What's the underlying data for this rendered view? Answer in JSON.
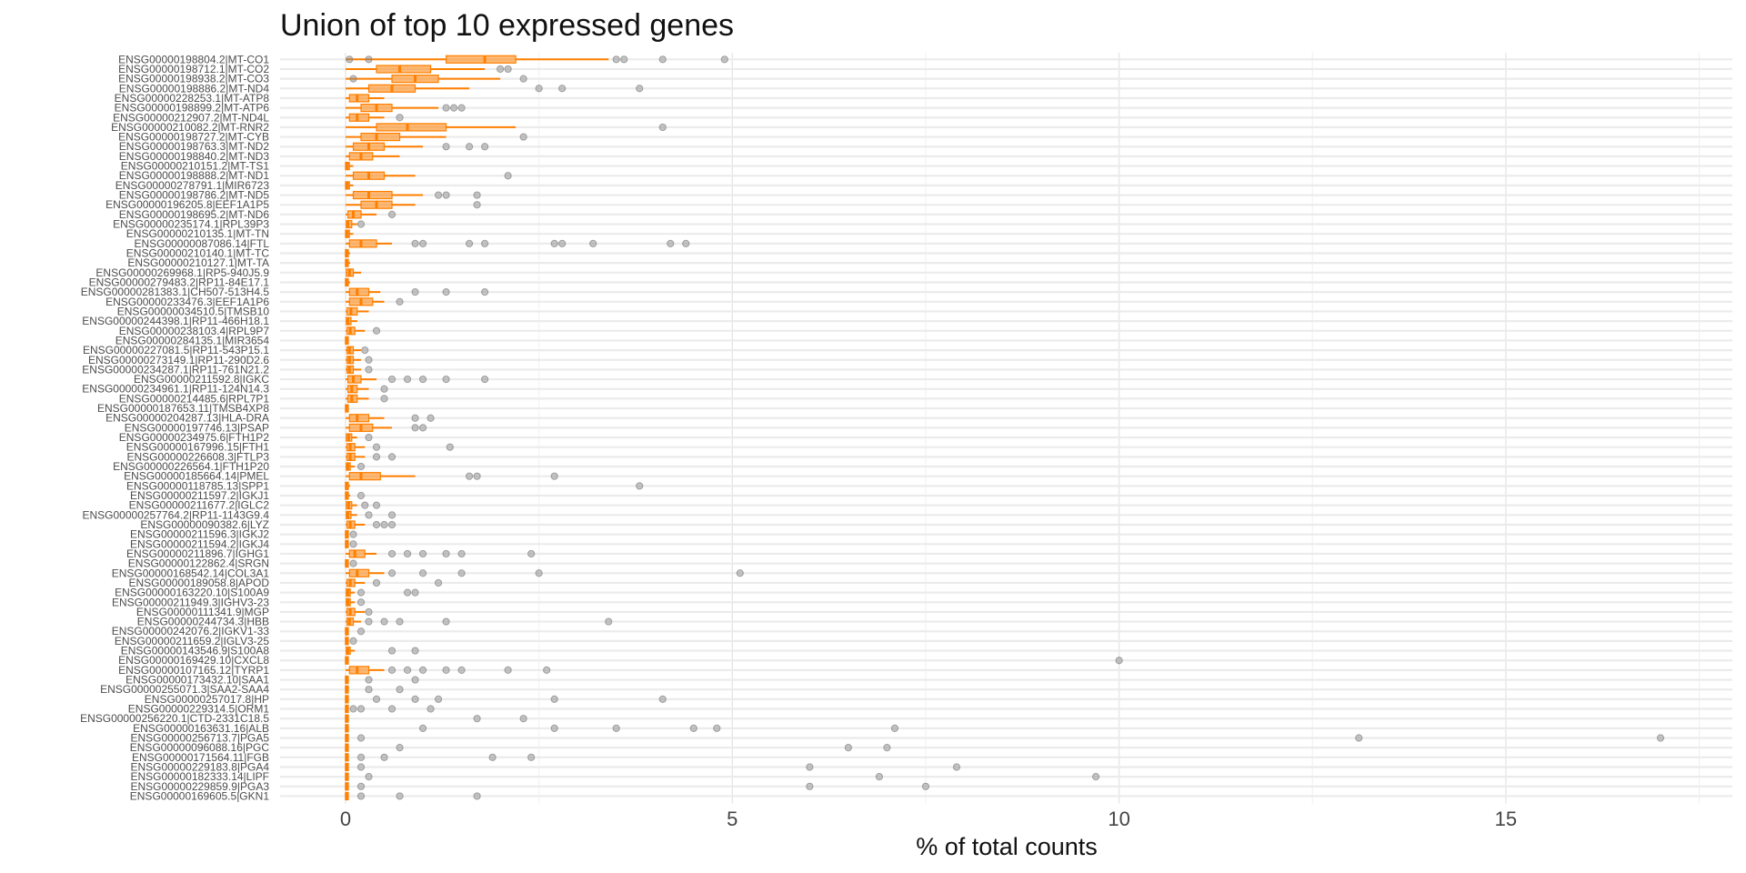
{
  "chart_data": {
    "type": "box",
    "title": "Union of top 10 expressed genes",
    "xlabel": "% of total counts",
    "ylabel": "",
    "xlim": [
      -0.85,
      17.5
    ],
    "xticks": [
      0,
      5,
      10,
      15
    ],
    "grid": true,
    "box_color": "#FF7F00",
    "outlier_color": "#808080",
    "categories": [
      "ENSG00000198804.2|MT-CO1",
      "ENSG00000198712.1|MT-CO2",
      "ENSG00000198938.2|MT-CO3",
      "ENSG00000198886.2|MT-ND4",
      "ENSG00000228253.1|MT-ATP8",
      "ENSG00000198899.2|MT-ATP6",
      "ENSG00000212907.2|MT-ND4L",
      "ENSG00000210082.2|MT-RNR2",
      "ENSG00000198727.2|MT-CYB",
      "ENSG00000198763.3|MT-ND2",
      "ENSG00000198840.2|MT-ND3",
      "ENSG00000210151.2|MT-TS1",
      "ENSG00000198888.2|MT-ND1",
      "ENSG00000278791.1|MIR6723",
      "ENSG00000198786.2|MT-ND5",
      "ENSG00000196205.8|EEF1A1P5",
      "ENSG00000198695.2|MT-ND6",
      "ENSG00000235174.1|RPL39P3",
      "ENSG00000210135.1|MT-TN",
      "ENSG00000087086.14|FTL",
      "ENSG00000210140.1|MT-TC",
      "ENSG00000210127.1|MT-TA",
      "ENSG00000269968.1|RP5-940J5.9",
      "ENSG00000279483.2|RP11-84E17.1",
      "ENSG00000281383.1|CH507-513H4.5",
      "ENSG00000233476.3|EEF1A1P6",
      "ENSG00000034510.5|TMSB10",
      "ENSG00000244398.1|RP11-466H18.1",
      "ENSG00000238103.4|RPL9P7",
      "ENSG00000284135.1|MIR3654",
      "ENSG00000227081.5|RP11-543P15.1",
      "ENSG00000273149.1|RP11-290D2.6",
      "ENSG00000234287.1|RP11-761N21.2",
      "ENSG00000211592.8|IGKC",
      "ENSG00000234961.1|RP11-124N14.3",
      "ENSG00000214485.6|RPL7P1",
      "ENSG00000187653.11|TMSB4XP8",
      "ENSG00000204287.13|HLA-DRA",
      "ENSG00000197746.13|PSAP",
      "ENSG00000234975.6|FTH1P2",
      "ENSG00000167996.15|FTH1",
      "ENSG00000226608.3|FTLP3",
      "ENSG00000226564.1|FTH1P20",
      "ENSG00000185664.14|PMEL",
      "ENSG00000118785.13|SPP1",
      "ENSG00000211597.2|IGKJ1",
      "ENSG00000211677.2|IGLC2",
      "ENSG00000257764.2|RP11-1143G9.4",
      "ENSG00000090382.6|LYZ",
      "ENSG00000211596.3|IGKJ2",
      "ENSG00000211594.2|IGKJ4",
      "ENSG00000211896.7|IGHG1",
      "ENSG00000122862.4|SRGN",
      "ENSG00000168542.14|COL3A1",
      "ENSG00000189058.8|APOD",
      "ENSG00000163220.10|S100A9",
      "ENSG00000211949.3|IGHV3-23",
      "ENSG00000111341.9|MGP",
      "ENSG00000244734.3|HBB",
      "ENSG00000242076.2|IGKV1-33",
      "ENSG00000211659.2|IGLV3-25",
      "ENSG00000143546.9|S100A8",
      "ENSG00000169429.10|CXCL8",
      "ENSG00000107165.12|TYRP1",
      "ENSG00000173432.10|SAA1",
      "ENSG00000255071.3|SAA2-SAA4",
      "ENSG00000257017.8|HP",
      "ENSG00000229314.5|ORM1",
      "ENSG00000256220.1|CTD-2331C18.5",
      "ENSG00000163631.16|ALB",
      "ENSG00000256713.7|PGA5",
      "ENSG00000096088.16|PGC",
      "ENSG00000171564.11|FGB",
      "ENSG00000229183.8|PGA4",
      "ENSG00000182333.14|LIPF",
      "ENSG00000229859.9|PGA3",
      "ENSG00000169605.5|GKN1"
    ],
    "boxes": [
      {
        "min": 0.0,
        "q1": 1.3,
        "median": 1.8,
        "q3": 2.2,
        "max": 3.4,
        "outliers": [
          0.05,
          0.3,
          3.5,
          3.6,
          4.1,
          4.9
        ]
      },
      {
        "min": 0.0,
        "q1": 0.4,
        "median": 0.7,
        "q3": 1.1,
        "max": 1.8,
        "outliers": [
          2.0,
          2.1
        ]
      },
      {
        "min": 0.0,
        "q1": 0.6,
        "median": 0.9,
        "q3": 1.2,
        "max": 2.0,
        "outliers": [
          0.1,
          2.3
        ]
      },
      {
        "min": 0.0,
        "q1": 0.3,
        "median": 0.6,
        "q3": 0.9,
        "max": 1.6,
        "outliers": [
          2.5,
          2.8,
          3.8
        ]
      },
      {
        "min": 0.0,
        "q1": 0.05,
        "median": 0.15,
        "q3": 0.3,
        "max": 0.5,
        "outliers": []
      },
      {
        "min": 0.0,
        "q1": 0.2,
        "median": 0.4,
        "q3": 0.6,
        "max": 1.2,
        "outliers": [
          1.3,
          1.4,
          1.5
        ]
      },
      {
        "min": 0.0,
        "q1": 0.05,
        "median": 0.15,
        "q3": 0.3,
        "max": 0.5,
        "outliers": [
          0.7
        ]
      },
      {
        "min": 0.0,
        "q1": 0.4,
        "median": 0.8,
        "q3": 1.3,
        "max": 2.2,
        "outliers": [
          4.1
        ]
      },
      {
        "min": 0.0,
        "q1": 0.2,
        "median": 0.4,
        "q3": 0.7,
        "max": 1.3,
        "outliers": [
          2.3
        ]
      },
      {
        "min": 0.0,
        "q1": 0.1,
        "median": 0.3,
        "q3": 0.5,
        "max": 1.0,
        "outliers": [
          1.3,
          1.6,
          1.8
        ]
      },
      {
        "min": 0.0,
        "q1": 0.05,
        "median": 0.2,
        "q3": 0.35,
        "max": 0.7,
        "outliers": []
      },
      {
        "min": 0.0,
        "q1": 0.0,
        "median": 0.02,
        "q3": 0.05,
        "max": 0.1,
        "outliers": []
      },
      {
        "min": 0.0,
        "q1": 0.1,
        "median": 0.3,
        "q3": 0.5,
        "max": 0.9,
        "outliers": [
          2.1
        ]
      },
      {
        "min": 0.0,
        "q1": 0.0,
        "median": 0.02,
        "q3": 0.05,
        "max": 0.1,
        "outliers": []
      },
      {
        "min": 0.0,
        "q1": 0.1,
        "median": 0.3,
        "q3": 0.6,
        "max": 1.0,
        "outliers": [
          1.2,
          1.3,
          1.7
        ]
      },
      {
        "min": 0.0,
        "q1": 0.2,
        "median": 0.4,
        "q3": 0.6,
        "max": 0.9,
        "outliers": [
          1.7
        ]
      },
      {
        "min": 0.0,
        "q1": 0.03,
        "median": 0.1,
        "q3": 0.2,
        "max": 0.4,
        "outliers": [
          0.6
        ]
      },
      {
        "min": 0.0,
        "q1": 0.01,
        "median": 0.03,
        "q3": 0.08,
        "max": 0.15,
        "outliers": [
          0.2
        ]
      },
      {
        "min": 0.0,
        "q1": 0.0,
        "median": 0.02,
        "q3": 0.05,
        "max": 0.1,
        "outliers": []
      },
      {
        "min": 0.0,
        "q1": 0.05,
        "median": 0.2,
        "q3": 0.4,
        "max": 0.6,
        "outliers": [
          0.9,
          1.0,
          1.6,
          1.8,
          2.7,
          2.8,
          3.2,
          4.2,
          4.4
        ]
      },
      {
        "min": 0.0,
        "q1": 0.0,
        "median": 0.01,
        "q3": 0.03,
        "max": 0.06,
        "outliers": []
      },
      {
        "min": 0.0,
        "q1": 0.0,
        "median": 0.01,
        "q3": 0.03,
        "max": 0.06,
        "outliers": []
      },
      {
        "min": 0.0,
        "q1": 0.01,
        "median": 0.05,
        "q3": 0.1,
        "max": 0.2,
        "outliers": []
      },
      {
        "min": 0.0,
        "q1": 0.0,
        "median": 0.01,
        "q3": 0.03,
        "max": 0.06,
        "outliers": []
      },
      {
        "min": 0.0,
        "q1": 0.05,
        "median": 0.15,
        "q3": 0.3,
        "max": 0.45,
        "outliers": [
          0.9,
          1.3,
          1.8
        ]
      },
      {
        "min": 0.0,
        "q1": 0.05,
        "median": 0.2,
        "q3": 0.35,
        "max": 0.5,
        "outliers": [
          0.7
        ]
      },
      {
        "min": 0.0,
        "q1": 0.02,
        "median": 0.07,
        "q3": 0.15,
        "max": 0.3,
        "outliers": []
      },
      {
        "min": 0.0,
        "q1": 0.01,
        "median": 0.03,
        "q3": 0.07,
        "max": 0.15,
        "outliers": []
      },
      {
        "min": 0.0,
        "q1": 0.02,
        "median": 0.06,
        "q3": 0.12,
        "max": 0.25,
        "outliers": [
          0.4
        ]
      },
      {
        "min": 0.0,
        "q1": 0.0,
        "median": 0.01,
        "q3": 0.02,
        "max": 0.04,
        "outliers": []
      },
      {
        "min": 0.0,
        "q1": 0.02,
        "median": 0.05,
        "q3": 0.1,
        "max": 0.2,
        "outliers": [
          0.25
        ]
      },
      {
        "min": 0.0,
        "q1": 0.02,
        "median": 0.05,
        "q3": 0.1,
        "max": 0.2,
        "outliers": [
          0.3
        ]
      },
      {
        "min": 0.0,
        "q1": 0.02,
        "median": 0.05,
        "q3": 0.1,
        "max": 0.2,
        "outliers": [
          0.3
        ]
      },
      {
        "min": 0.0,
        "q1": 0.03,
        "median": 0.1,
        "q3": 0.2,
        "max": 0.4,
        "outliers": [
          0.6,
          0.8,
          1.0,
          1.3,
          1.8
        ]
      },
      {
        "min": 0.0,
        "q1": 0.03,
        "median": 0.08,
        "q3": 0.15,
        "max": 0.3,
        "outliers": [
          0.5
        ]
      },
      {
        "min": 0.0,
        "q1": 0.03,
        "median": 0.08,
        "q3": 0.15,
        "max": 0.3,
        "outliers": [
          0.5
        ]
      },
      {
        "min": 0.0,
        "q1": 0.0,
        "median": 0.01,
        "q3": 0.02,
        "max": 0.04,
        "outliers": []
      },
      {
        "min": 0.0,
        "q1": 0.05,
        "median": 0.15,
        "q3": 0.3,
        "max": 0.5,
        "outliers": [
          0.9,
          1.1
        ]
      },
      {
        "min": 0.0,
        "q1": 0.05,
        "median": 0.2,
        "q3": 0.35,
        "max": 0.6,
        "outliers": [
          0.9,
          1.0
        ]
      },
      {
        "min": 0.0,
        "q1": 0.01,
        "median": 0.04,
        "q3": 0.08,
        "max": 0.15,
        "outliers": [
          0.3
        ]
      },
      {
        "min": 0.0,
        "q1": 0.02,
        "median": 0.06,
        "q3": 0.12,
        "max": 0.25,
        "outliers": [
          0.4,
          1.35
        ]
      },
      {
        "min": 0.0,
        "q1": 0.02,
        "median": 0.06,
        "q3": 0.12,
        "max": 0.25,
        "outliers": [
          0.4,
          0.6
        ]
      },
      {
        "min": 0.0,
        "q1": 0.01,
        "median": 0.03,
        "q3": 0.06,
        "max": 0.12,
        "outliers": [
          0.2
        ]
      },
      {
        "min": 0.0,
        "q1": 0.05,
        "median": 0.2,
        "q3": 0.45,
        "max": 0.9,
        "outliers": [
          1.6,
          1.7,
          2.7
        ]
      },
      {
        "min": 0.0,
        "q1": 0.0,
        "median": 0.01,
        "q3": 0.03,
        "max": 0.06,
        "outliers": [
          3.8
        ]
      },
      {
        "min": 0.0,
        "q1": 0.0,
        "median": 0.01,
        "q3": 0.03,
        "max": 0.06,
        "outliers": [
          0.2
        ]
      },
      {
        "min": 0.0,
        "q1": 0.01,
        "median": 0.04,
        "q3": 0.08,
        "max": 0.15,
        "outliers": [
          0.25,
          0.4
        ]
      },
      {
        "min": 0.0,
        "q1": 0.01,
        "median": 0.03,
        "q3": 0.07,
        "max": 0.15,
        "outliers": [
          0.3,
          0.6
        ]
      },
      {
        "min": 0.0,
        "q1": 0.02,
        "median": 0.06,
        "q3": 0.12,
        "max": 0.25,
        "outliers": [
          0.4,
          0.5,
          0.6
        ]
      },
      {
        "min": 0.0,
        "q1": 0.0,
        "median": 0.01,
        "q3": 0.02,
        "max": 0.04,
        "outliers": [
          0.1
        ]
      },
      {
        "min": 0.0,
        "q1": 0.0,
        "median": 0.01,
        "q3": 0.02,
        "max": 0.04,
        "outliers": [
          0.1
        ]
      },
      {
        "min": 0.0,
        "q1": 0.05,
        "median": 0.12,
        "q3": 0.25,
        "max": 0.4,
        "outliers": [
          0.6,
          0.8,
          1.0,
          1.3,
          1.5,
          2.4
        ]
      },
      {
        "min": 0.0,
        "q1": 0.0,
        "median": 0.01,
        "q3": 0.02,
        "max": 0.04,
        "outliers": [
          0.1
        ]
      },
      {
        "min": 0.0,
        "q1": 0.05,
        "median": 0.15,
        "q3": 0.3,
        "max": 0.5,
        "outliers": [
          0.6,
          1.0,
          1.5,
          2.5,
          5.1
        ]
      },
      {
        "min": 0.0,
        "q1": 0.02,
        "median": 0.06,
        "q3": 0.12,
        "max": 0.25,
        "outliers": [
          0.4,
          1.2
        ]
      },
      {
        "min": 0.0,
        "q1": 0.01,
        "median": 0.03,
        "q3": 0.06,
        "max": 0.12,
        "outliers": [
          0.2,
          0.8,
          0.9
        ]
      },
      {
        "min": 0.0,
        "q1": 0.01,
        "median": 0.03,
        "q3": 0.06,
        "max": 0.12,
        "outliers": [
          0.2
        ]
      },
      {
        "min": 0.0,
        "q1": 0.02,
        "median": 0.06,
        "q3": 0.12,
        "max": 0.25,
        "outliers": [
          0.3
        ]
      },
      {
        "min": 0.0,
        "q1": 0.02,
        "median": 0.05,
        "q3": 0.1,
        "max": 0.2,
        "outliers": [
          0.3,
          0.5,
          0.7,
          1.3,
          3.4
        ]
      },
      {
        "min": 0.0,
        "q1": 0.0,
        "median": 0.01,
        "q3": 0.02,
        "max": 0.04,
        "outliers": [
          0.2
        ]
      },
      {
        "min": 0.0,
        "q1": 0.0,
        "median": 0.01,
        "q3": 0.02,
        "max": 0.04,
        "outliers": [
          0.1
        ]
      },
      {
        "min": 0.0,
        "q1": 0.01,
        "median": 0.03,
        "q3": 0.06,
        "max": 0.12,
        "outliers": [
          0.6,
          0.9
        ]
      },
      {
        "min": 0.0,
        "q1": 0.0,
        "median": 0.01,
        "q3": 0.02,
        "max": 0.04,
        "outliers": [
          10.0
        ]
      },
      {
        "min": 0.0,
        "q1": 0.05,
        "median": 0.15,
        "q3": 0.3,
        "max": 0.5,
        "outliers": [
          0.6,
          0.8,
          1.0,
          1.3,
          1.5,
          2.1,
          2.6
        ]
      },
      {
        "min": 0.0,
        "q1": 0.0,
        "median": 0.01,
        "q3": 0.02,
        "max": 0.04,
        "outliers": [
          0.3,
          0.9
        ]
      },
      {
        "min": 0.0,
        "q1": 0.0,
        "median": 0.01,
        "q3": 0.02,
        "max": 0.04,
        "outliers": [
          0.3,
          0.7
        ]
      },
      {
        "min": 0.0,
        "q1": 0.0,
        "median": 0.01,
        "q3": 0.02,
        "max": 0.04,
        "outliers": [
          0.4,
          0.9,
          1.2,
          2.7,
          4.1
        ]
      },
      {
        "min": 0.0,
        "q1": 0.0,
        "median": 0.01,
        "q3": 0.02,
        "max": 0.04,
        "outliers": [
          0.1,
          0.2,
          0.6,
          1.1
        ]
      },
      {
        "min": 0.0,
        "q1": 0.0,
        "median": 0.01,
        "q3": 0.02,
        "max": 0.04,
        "outliers": [
          1.7,
          2.3
        ]
      },
      {
        "min": 0.0,
        "q1": 0.0,
        "median": 0.01,
        "q3": 0.02,
        "max": 0.04,
        "outliers": [
          1.0,
          2.7,
          3.5,
          4.5,
          4.8,
          7.1
        ]
      },
      {
        "min": 0.0,
        "q1": 0.0,
        "median": 0.01,
        "q3": 0.02,
        "max": 0.04,
        "outliers": [
          0.2,
          13.1,
          17.0
        ]
      },
      {
        "min": 0.0,
        "q1": 0.0,
        "median": 0.01,
        "q3": 0.02,
        "max": 0.04,
        "outliers": [
          0.7,
          6.5,
          7.0
        ]
      },
      {
        "min": 0.0,
        "q1": 0.0,
        "median": 0.01,
        "q3": 0.02,
        "max": 0.04,
        "outliers": [
          0.2,
          0.5,
          1.9,
          2.4
        ]
      },
      {
        "min": 0.0,
        "q1": 0.0,
        "median": 0.01,
        "q3": 0.02,
        "max": 0.04,
        "outliers": [
          0.2,
          6.0,
          7.9
        ]
      },
      {
        "min": 0.0,
        "q1": 0.0,
        "median": 0.01,
        "q3": 0.02,
        "max": 0.04,
        "outliers": [
          0.3,
          6.9,
          9.7
        ]
      },
      {
        "min": 0.0,
        "q1": 0.0,
        "median": 0.01,
        "q3": 0.02,
        "max": 0.04,
        "outliers": [
          0.2,
          6.0,
          7.5
        ]
      },
      {
        "min": 0.0,
        "q1": 0.0,
        "median": 0.01,
        "q3": 0.02,
        "max": 0.04,
        "outliers": [
          0.2,
          0.7,
          1.7
        ]
      }
    ]
  }
}
